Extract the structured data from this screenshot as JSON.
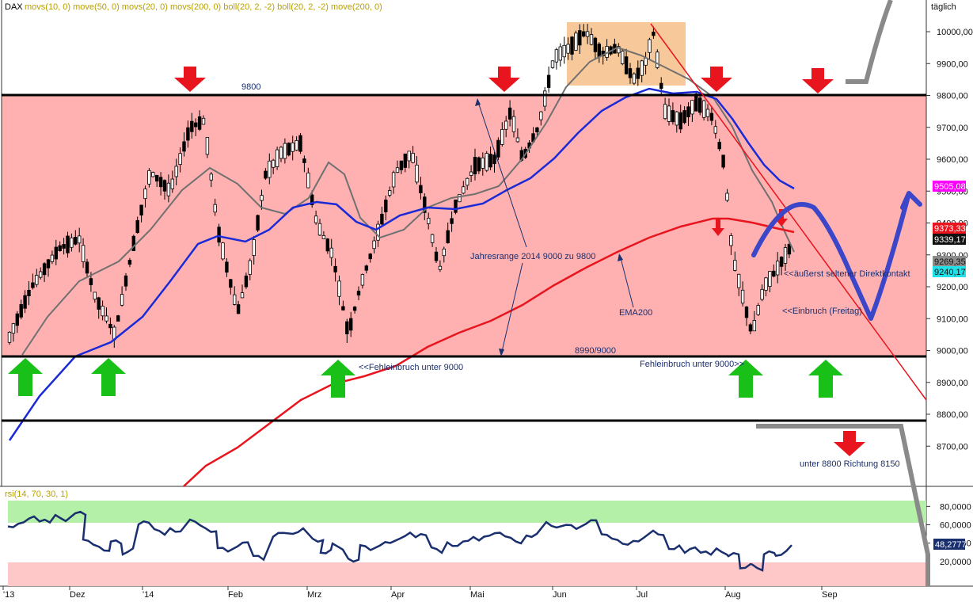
{
  "header": {
    "symbol": "DAX",
    "indicators": "movs(10, 0) move(50, 0) movs(20, 0) movs(200, 0) boll(20, 2, -2) boll(20, 2, -2) move(200, 0)",
    "period": "täglich"
  },
  "rsi_header": "rsi(14, 70, 30, 1)",
  "annotations": {
    "top_line_label": "9800",
    "bottom_line_label": "8990/9000",
    "range_label": "Jahresrange 2014 9000 zu 9800",
    "ema_label": "EMA200",
    "false_break_left": "<<Fehleinbruch unter 9000",
    "false_break_right": "Fehleinbruch unter 9000>>",
    "direct_contact": "<<äußerst seltener Direktkontakt",
    "collapse": "<<Einbruch (Freitag)",
    "below_8800": "unter 8800 Richtung 8150"
  },
  "price_axis": {
    "ticks": [
      "10000,00",
      "9900,00",
      "9800,00",
      "9700,00",
      "9600,00",
      "9500,00",
      "9400,00",
      "9300,00",
      "9200,00",
      "9100,00",
      "9000,00",
      "8900,00",
      "8800,00",
      "8700,00"
    ]
  },
  "rsi_axis": {
    "ticks": [
      "80,0000",
      "60,0000",
      "40,0000",
      "20,0000"
    ]
  },
  "time_axis": {
    "labels": [
      "'13",
      "Dez",
      "'14",
      "Feb",
      "Mrz",
      "Apr",
      "Mai",
      "Jun",
      "Jul",
      "Aug",
      "Sep"
    ]
  },
  "badges": [
    {
      "text": "9505,08",
      "bg": "#ff00ff",
      "fg": "#ffffff"
    },
    {
      "text": "9373,33",
      "bg": "#e8141e",
      "fg": "#ffffff"
    },
    {
      "text": "9339,17",
      "bg": "#111111",
      "fg": "#ffffff"
    },
    {
      "text": "9269,35",
      "bg": "#8c8c8c",
      "fg": "#111111"
    },
    {
      "text": "9240,17",
      "bg": "#22e0e8",
      "fg": "#111111"
    }
  ],
  "rsi_badge": {
    "text": "48,2777",
    "bg": "#1a2f6e",
    "fg": "#ffffff"
  },
  "colors": {
    "range_fill": "#ffb1b1",
    "box_fill": "#f7c99a",
    "ema200": "#e8141e",
    "ema50": "#1a2ad6",
    "sma20": "#707070",
    "rsi_line": "#1a2f6e",
    "rsi_over": "#b5f0a8",
    "rsi_under": "#ffc8c8",
    "arrow_down": "#e8141e",
    "arrow_up": "#18c018",
    "forecast": "#3c46c8"
  },
  "chart_data": [
    {
      "type": "candlestick",
      "title": "DAX",
      "period": "täglich",
      "ylim": [
        8620,
        10060
      ],
      "horizontal_levels": [
        9800,
        8990,
        8800
      ],
      "series": [
        {
          "name": "price",
          "x": [
            "'13",
            "Dez",
            "'14",
            "Feb",
            "Mrz",
            "Apr",
            "Mai",
            "Jun",
            "Jul",
            "Aug"
          ],
          "values": [
            9030,
            9200,
            9350,
            9400,
            9200,
            9400,
            9600,
            9900,
            9980,
            9100
          ]
        },
        {
          "name": "EMA200",
          "x": [
            "Feb",
            "Mrz",
            "Apr",
            "Mai",
            "Jun",
            "Jul",
            "Aug"
          ],
          "values": [
            8700,
            8880,
            8950,
            9060,
            9260,
            9340,
            9380
          ]
        }
      ],
      "price_badges": [
        9505.08,
        9373.33,
        9339.17,
        9269.35,
        9240.17
      ]
    },
    {
      "type": "line",
      "title": "rsi(14, 70, 30, 1)",
      "ylim": [
        0,
        95
      ],
      "bands": {
        "overbought": 70,
        "oversold": 30
      },
      "series": [
        {
          "name": "rsi",
          "x": [
            "'13",
            "Dez",
            "'14",
            "Feb",
            "Mrz",
            "Apr",
            "Mai",
            "Jun",
            "Jul",
            "Aug"
          ],
          "values": [
            76,
            54,
            65,
            47,
            52,
            48,
            55,
            68,
            52,
            28
          ]
        }
      ],
      "last_value": 48.2777
    }
  ]
}
